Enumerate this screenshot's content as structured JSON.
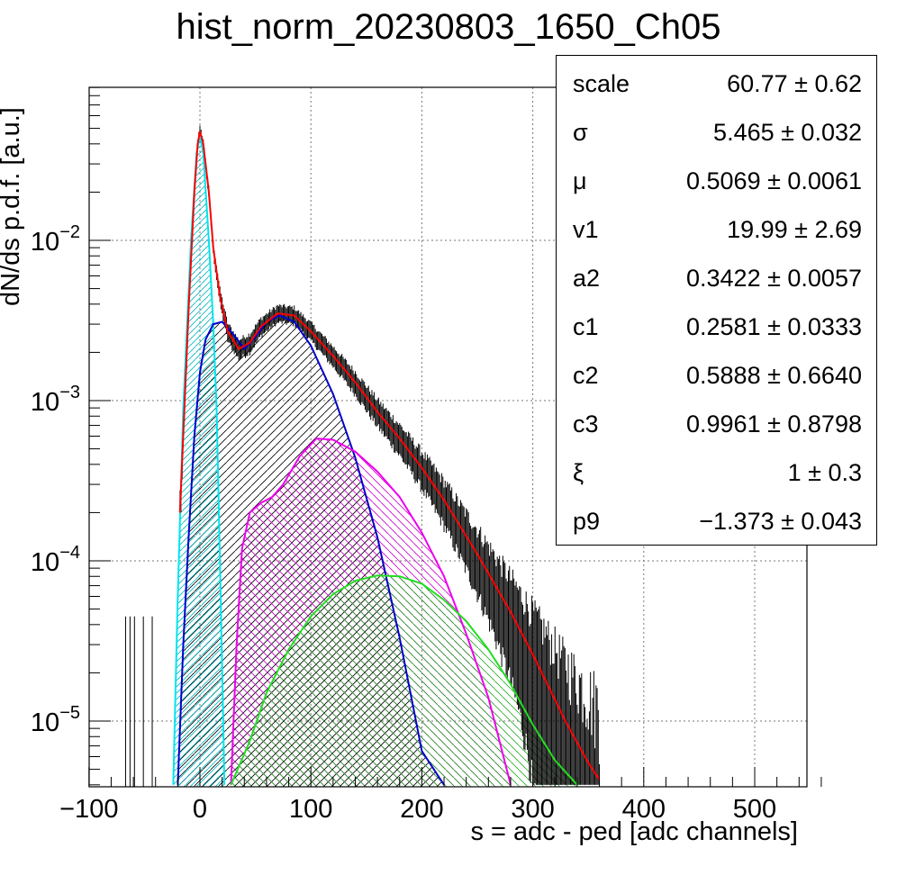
{
  "chart_data": {
    "type": "line",
    "title": "hist_norm_20230803_1650_Ch05",
    "xlabel": "s = adc - ped [adc channels]",
    "ylabel": "dN/ds p.d.f. [a.u.]",
    "xlim": [
      -100,
      575
    ],
    "ylim": [
      4e-06,
      0.09
    ],
    "y_scale": "log",
    "grid": true,
    "x_ticks": [
      "−100",
      "0",
      "100",
      "200",
      "300",
      "400",
      "500"
    ],
    "y_ticks": [
      {
        "base": "10",
        "exp": "−2",
        "value": 0.01
      },
      {
        "base": "10",
        "exp": "−3",
        "value": 0.001
      },
      {
        "base": "10",
        "exp": "−4",
        "value": 0.0001
      },
      {
        "base": "10",
        "exp": "−5",
        "value": 1e-05
      }
    ],
    "series": [
      {
        "color": "#ff0000",
        "points": [
          [
            -18,
            0.0002
          ],
          [
            -10,
            0.004
          ],
          [
            -5,
            0.02
          ],
          [
            -2,
            0.04
          ],
          [
            0,
            0.048
          ],
          [
            3,
            0.04
          ],
          [
            8,
            0.02
          ],
          [
            12,
            0.009
          ],
          [
            18,
            0.0045
          ],
          [
            25,
            0.0027
          ],
          [
            35,
            0.0021
          ],
          [
            45,
            0.0023
          ],
          [
            55,
            0.0029
          ],
          [
            70,
            0.0035
          ],
          [
            85,
            0.0034
          ],
          [
            100,
            0.0027
          ],
          [
            120,
            0.0019
          ],
          [
            140,
            0.0013
          ],
          [
            160,
            0.00085
          ],
          [
            180,
            0.00058
          ],
          [
            200,
            0.00038
          ],
          [
            220,
            0.00024
          ],
          [
            250,
            0.00011
          ],
          [
            280,
            4.8e-05
          ],
          [
            300,
            2.6e-05
          ],
          [
            330,
            9.8e-06
          ],
          [
            350,
            5.5e-06
          ],
          [
            360,
            4.3e-06
          ]
        ]
      },
      {
        "color": "#00e5ee",
        "points": [
          [
            -24,
            4e-06
          ],
          [
            -20,
            6e-05
          ],
          [
            -15,
            0.0009
          ],
          [
            -8,
            0.01
          ],
          [
            -3,
            0.035
          ],
          [
            0,
            0.045
          ],
          [
            3,
            0.035
          ],
          [
            8,
            0.01
          ],
          [
            12,
            0.003
          ],
          [
            15,
            0.0009
          ],
          [
            18,
            0.0001
          ],
          [
            21,
            1e-05
          ],
          [
            22,
            4e-06
          ]
        ]
      },
      {
        "color": "#0000cc",
        "points": [
          [
            -20,
            4e-06
          ],
          [
            -15,
            3e-05
          ],
          [
            -10,
            0.00015
          ],
          [
            -5,
            0.0006
          ],
          [
            0,
            0.0015
          ],
          [
            5,
            0.0024
          ],
          [
            12,
            0.003
          ],
          [
            20,
            0.0031
          ],
          [
            30,
            0.0026
          ],
          [
            40,
            0.0021
          ],
          [
            50,
            0.0025
          ],
          [
            60,
            0.0031
          ],
          [
            72,
            0.0034
          ],
          [
            85,
            0.0031
          ],
          [
            100,
            0.0022
          ],
          [
            120,
            0.0011
          ],
          [
            140,
            0.00044
          ],
          [
            160,
            0.00014
          ],
          [
            180,
            3.3e-05
          ],
          [
            200,
            6.5e-06
          ],
          [
            220,
            4e-06
          ]
        ]
      },
      {
        "color": "#ee00ee",
        "points": [
          [
            28,
            4e-06
          ],
          [
            33,
            3e-05
          ],
          [
            38,
            0.00012
          ],
          [
            45,
            0.0002
          ],
          [
            55,
            0.00023
          ],
          [
            65,
            0.00025
          ],
          [
            75,
            0.0003
          ],
          [
            90,
            0.00045
          ],
          [
            105,
            0.00058
          ],
          [
            120,
            0.00057
          ],
          [
            140,
            0.00048
          ],
          [
            160,
            0.00036
          ],
          [
            180,
            0.00025
          ],
          [
            200,
            0.00015
          ],
          [
            220,
            8e-05
          ],
          [
            240,
            3.5e-05
          ],
          [
            260,
            1.4e-05
          ],
          [
            280,
            4e-06
          ]
        ]
      },
      {
        "color": "#22dd22",
        "points": [
          [
            28,
            4e-06
          ],
          [
            45,
            7.5e-06
          ],
          [
            60,
            1.5e-05
          ],
          [
            80,
            2.8e-05
          ],
          [
            100,
            4.5e-05
          ],
          [
            120,
            6.2e-05
          ],
          [
            140,
            7.5e-05
          ],
          [
            160,
            8.1e-05
          ],
          [
            180,
            8e-05
          ],
          [
            200,
            7.2e-05
          ],
          [
            220,
            5.7e-05
          ],
          [
            240,
            4.2e-05
          ],
          [
            260,
            2.8e-05
          ],
          [
            280,
            1.7e-05
          ],
          [
            300,
            9.5e-06
          ],
          [
            320,
            5.7e-06
          ],
          [
            340,
            4e-06
          ]
        ]
      }
    ],
    "stats_box": [
      {
        "name": "scale",
        "value": "60.77 ± 0.62"
      },
      {
        "name": "σ",
        "value": "5.465 ± 0.032"
      },
      {
        "name": "μ",
        "value": "0.5069 ± 0.0061"
      },
      {
        "name": "v1",
        "value": "19.99 ± 2.69"
      },
      {
        "name": "a2",
        "value": "0.3422 ± 0.0057"
      },
      {
        "name": "c1",
        "value": "0.2581 ± 0.0333"
      },
      {
        "name": "c2",
        "value": "0.5888 ± 0.6640"
      },
      {
        "name": "c3",
        "value": "0.9961 ± 0.8798"
      },
      {
        "name": "ξ",
        "value": "1 ± 0.3"
      },
      {
        "name": "p9",
        "value": "−1.373 ± 0.043"
      }
    ]
  }
}
